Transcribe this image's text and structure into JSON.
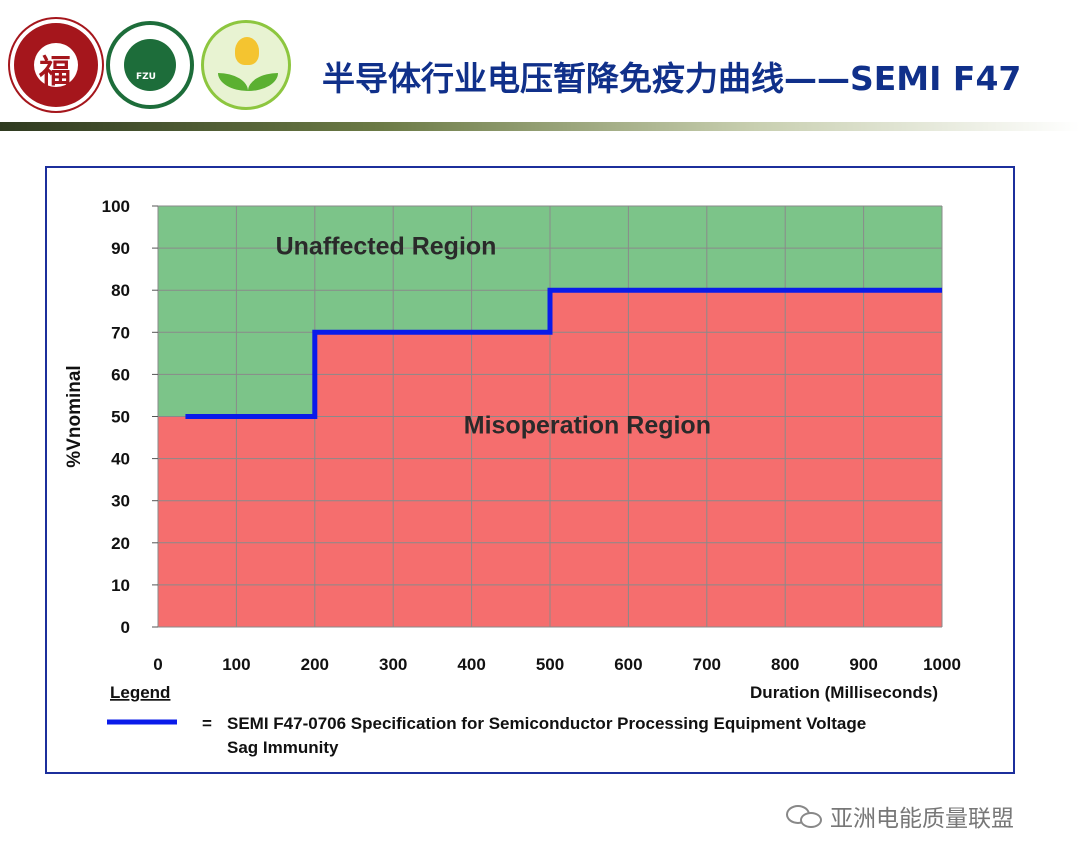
{
  "header": {
    "title": "半导体行业电压暂降免疫力曲线——SEMI F47"
  },
  "chart_data": {
    "type": "line",
    "ylabel": "%Vnominal",
    "xlabel": "Duration (Milliseconds)",
    "xlim": [
      0,
      1000
    ],
    "ylim": [
      0,
      100
    ],
    "x_ticks": [
      0,
      100,
      200,
      300,
      400,
      500,
      600,
      700,
      800,
      900,
      1000
    ],
    "y_ticks": [
      0,
      10,
      20,
      30,
      40,
      50,
      60,
      70,
      80,
      90,
      100
    ],
    "grid": true,
    "series": [
      {
        "name": "SEMI F47-0706 Specification for Semiconductor Processing Equipment Voltage Sag Immunity",
        "step_points": [
          [
            35,
            50
          ],
          [
            200,
            50
          ],
          [
            200,
            70
          ],
          [
            500,
            70
          ],
          [
            500,
            80
          ],
          [
            1000,
            80
          ]
        ],
        "color": "#0a1bea"
      }
    ],
    "regions": [
      {
        "label": "Unaffected Region",
        "color": "#7cc489",
        "position": "above curve"
      },
      {
        "label": "Misoperation Region",
        "color": "#f56e6e",
        "position": "below curve"
      }
    ],
    "legend": {
      "title": "Legend",
      "equals": "=",
      "text_line1": "SEMI F47-0706  Specification for Semiconductor Processing Equipment Voltage",
      "text_line2": "Sag Immunity"
    }
  },
  "watermark": {
    "text": "亚洲电能质量联盟"
  }
}
